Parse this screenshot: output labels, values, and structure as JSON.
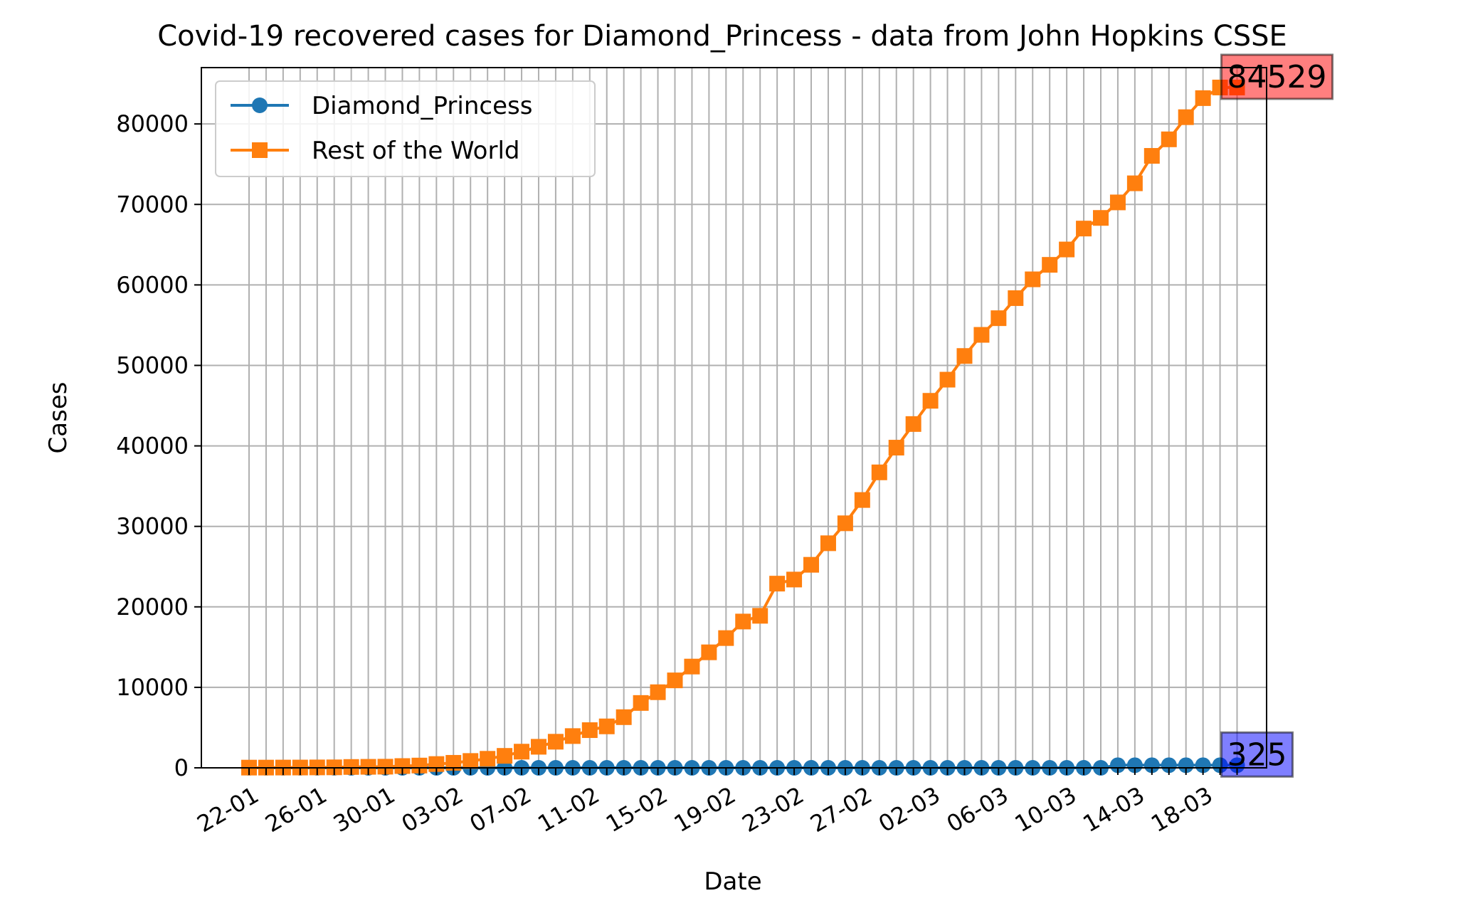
{
  "chart_data": {
    "type": "line",
    "title": "Covid-19 recovered cases for Diamond_Princess - data from John Hopkins CSSE",
    "xlabel": "Date",
    "ylabel": "Cases",
    "ylim": [
      0,
      87000
    ],
    "yticks": [
      0,
      10000,
      20000,
      30000,
      40000,
      50000,
      60000,
      70000,
      80000
    ],
    "x_tick_labels": [
      "22-01",
      "26-01",
      "30-01",
      "03-02",
      "07-02",
      "11-02",
      "15-02",
      "19-02",
      "23-02",
      "27-02",
      "02-03",
      "06-03",
      "10-03",
      "14-03",
      "18-03"
    ],
    "x_dates": [
      "22-01",
      "23-01",
      "24-01",
      "25-01",
      "26-01",
      "27-01",
      "28-01",
      "29-01",
      "30-01",
      "31-01",
      "01-02",
      "02-02",
      "03-02",
      "04-02",
      "05-02",
      "06-02",
      "07-02",
      "08-02",
      "09-02",
      "10-02",
      "11-02",
      "12-02",
      "13-02",
      "14-02",
      "15-02",
      "16-02",
      "17-02",
      "18-02",
      "19-02",
      "20-02",
      "21-02",
      "22-02",
      "23-02",
      "24-02",
      "25-02",
      "26-02",
      "27-02",
      "28-02",
      "29-02",
      "01-03",
      "02-03",
      "03-03",
      "04-03",
      "05-03",
      "06-03",
      "07-03",
      "08-03",
      "09-03",
      "10-03",
      "11-03",
      "12-03",
      "13-03",
      "14-03",
      "15-03",
      "16-03",
      "17-03",
      "18-03",
      "19-03",
      "20-03"
    ],
    "grid": true,
    "legend_position": "top-left",
    "series": [
      {
        "name": "Diamond_Princess",
        "color": "#1f77b4",
        "marker": "circle",
        "values": [
          0,
          0,
          0,
          0,
          0,
          0,
          0,
          0,
          0,
          0,
          0,
          0,
          0,
          0,
          0,
          0,
          0,
          1,
          1,
          1,
          1,
          1,
          1,
          1,
          1,
          1,
          1,
          1,
          1,
          1,
          1,
          1,
          1,
          1,
          1,
          1,
          1,
          1,
          1,
          1,
          1,
          1,
          1,
          1,
          1,
          1,
          1,
          1,
          1,
          1,
          1,
          325,
          325,
          325,
          325,
          325,
          325,
          325,
          325
        ]
      },
      {
        "name": "Rest of the World",
        "color": "#ff7f0e",
        "marker": "square",
        "values": [
          28,
          30,
          36,
          39,
          52,
          61,
          107,
          126,
          143,
          222,
          284,
          472,
          623,
          852,
          1124,
          1487,
          2011,
          2616,
          3244,
          3946,
          4683,
          5150,
          6295,
          8058,
          9395,
          10865,
          12583,
          14352,
          16121,
          18177,
          18890,
          22886,
          23394,
          25227,
          27905,
          30384,
          33277,
          36711,
          39782,
          42716,
          45602,
          48228,
          51170,
          53796,
          55866,
          58359,
          60694,
          62494,
          64404,
          67003,
          68324,
          70251,
          72624,
          76034,
          78088,
          80840,
          83207,
          84529,
          84529
        ]
      }
    ],
    "annotations": [
      {
        "series": "Rest of the World",
        "text": "84529",
        "box_color": "#ff0000"
      },
      {
        "series": "Diamond_Princess",
        "text": "325",
        "box_color": "#0000ff"
      }
    ]
  }
}
